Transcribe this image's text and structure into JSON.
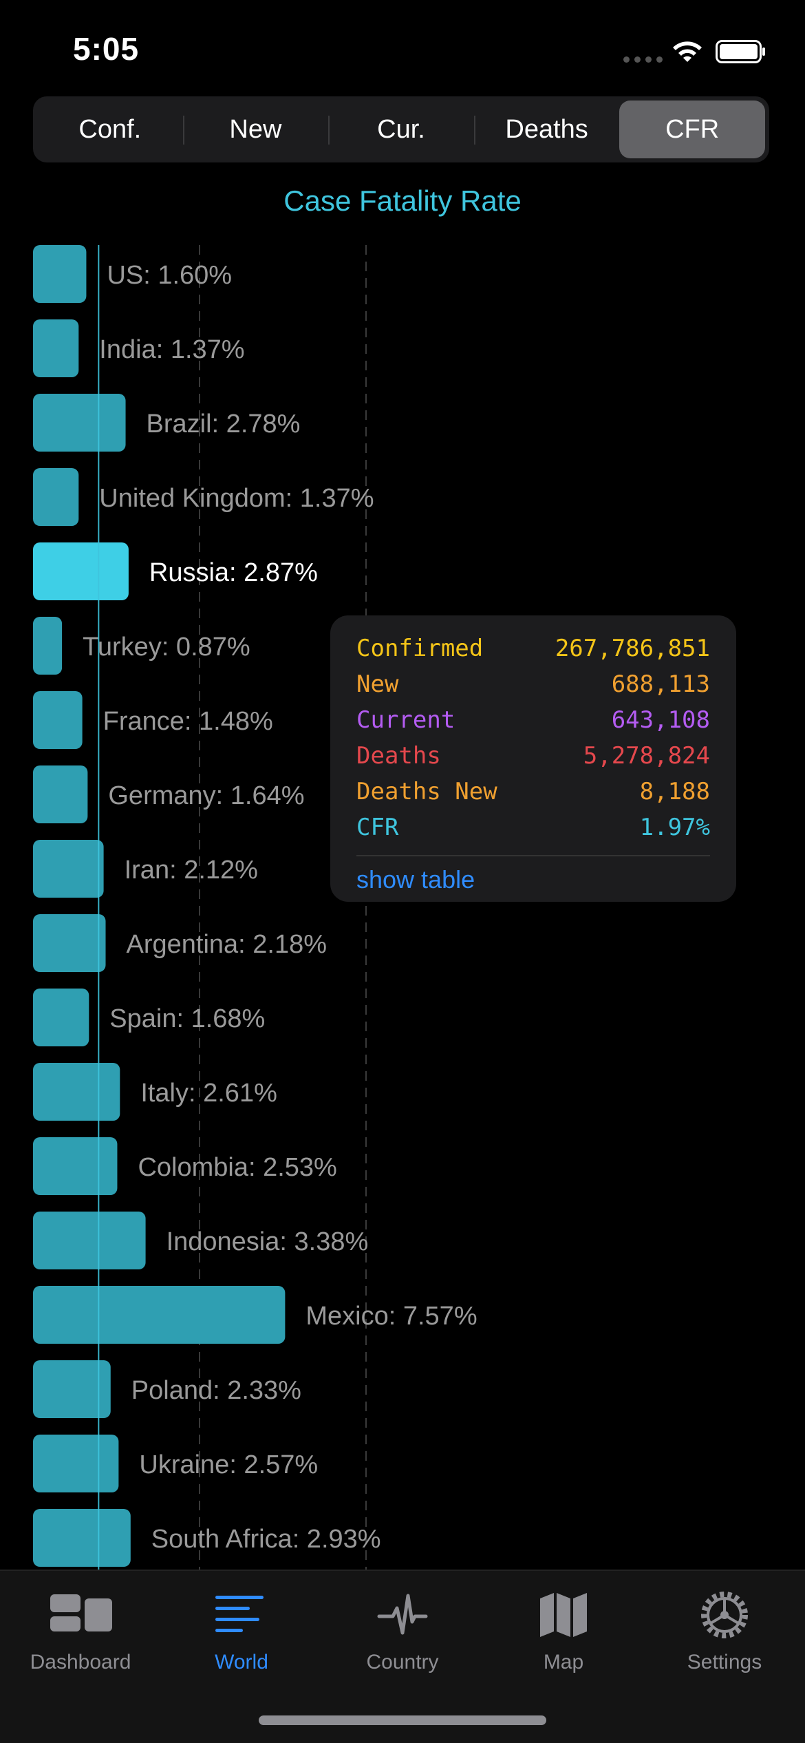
{
  "status": {
    "time": "5:05"
  },
  "segments": [
    {
      "label": "Conf.",
      "selected": false
    },
    {
      "label": "New",
      "selected": false
    },
    {
      "label": "Cur.",
      "selected": false
    },
    {
      "label": "Deaths",
      "selected": false
    },
    {
      "label": "CFR",
      "selected": true
    }
  ],
  "colors": {
    "bar": "#2f9fb2",
    "bar_highlight": "#3ecfe6",
    "label": "#9a9a9a",
    "label_highlight": "#ffffff",
    "accent": "#3fc5de",
    "confirmed": "#f5c518",
    "new": "#f0a030",
    "current": "#b45cf2",
    "deaths": "#e5484d",
    "deaths_new": "#f0a030",
    "cfr": "#3fc5de"
  },
  "chart_data": {
    "type": "bar",
    "orientation": "horizontal",
    "title": "Case Fatality Rate",
    "unit": "%",
    "reference_value": 1.97,
    "xlim": [
      0,
      10
    ],
    "grid": "dashed vertical",
    "highlighted": "Russia",
    "categories": [
      "US",
      "India",
      "Brazil",
      "United Kingdom",
      "Russia",
      "Turkey",
      "France",
      "Germany",
      "Iran",
      "Argentina",
      "Spain",
      "Italy",
      "Colombia",
      "Indonesia",
      "Mexico",
      "Poland",
      "Ukraine",
      "South Africa"
    ],
    "values": [
      1.6,
      1.37,
      2.78,
      1.37,
      2.87,
      0.87,
      1.48,
      1.64,
      2.12,
      2.18,
      1.68,
      2.61,
      2.53,
      3.38,
      7.57,
      2.33,
      2.57,
      2.93
    ],
    "labels": [
      "US: 1.60%",
      "India: 1.37%",
      "Brazil: 2.78%",
      "United Kingdom: 1.37%",
      "Russia: 2.87%",
      "Turkey: 0.87%",
      "France: 1.48%",
      "Germany: 1.64%",
      "Iran: 2.12%",
      "Argentina: 2.18%",
      "Spain: 1.68%",
      "Italy: 2.61%",
      "Colombia: 2.53%",
      "Indonesia: 3.38%",
      "Mexico: 7.57%",
      "Poland: 2.33%",
      "Ukraine: 2.57%",
      "South Africa: 2.93%"
    ]
  },
  "tooltip": {
    "rows": [
      {
        "label": "Confirmed",
        "value": "267,786,851",
        "color_key": "confirmed"
      },
      {
        "label": "New",
        "value": "688,113",
        "color_key": "new"
      },
      {
        "label": "Current",
        "value": "643,108",
        "color_key": "current"
      },
      {
        "label": "Deaths",
        "value": "5,278,824",
        "color_key": "deaths"
      },
      {
        "label": "Deaths New",
        "value": "8,188",
        "color_key": "deaths_new"
      },
      {
        "label": "CFR",
        "value": "1.97%",
        "color_key": "cfr"
      }
    ],
    "link": "show table"
  },
  "tabbar": {
    "tabs": [
      {
        "label": "Dashboard",
        "icon": "dashboard-icon",
        "active": false
      },
      {
        "label": "World",
        "icon": "list-icon",
        "active": true
      },
      {
        "label": "Country",
        "icon": "pulse-icon",
        "active": false
      },
      {
        "label": "Map",
        "icon": "map-icon",
        "active": false
      },
      {
        "label": "Settings",
        "icon": "gear-icon",
        "active": false
      }
    ]
  }
}
